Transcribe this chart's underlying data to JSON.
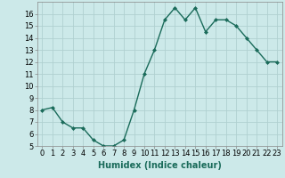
{
  "x": [
    0,
    1,
    2,
    3,
    4,
    5,
    6,
    7,
    8,
    9,
    10,
    11,
    12,
    13,
    14,
    15,
    16,
    17,
    18,
    19,
    20,
    21,
    22,
    23
  ],
  "y": [
    8.0,
    8.2,
    7.0,
    6.5,
    6.5,
    5.5,
    5.0,
    5.0,
    5.5,
    8.0,
    11.0,
    13.0,
    15.5,
    16.5,
    15.5,
    16.5,
    14.5,
    15.5,
    15.5,
    15.0,
    14.0,
    13.0,
    12.0,
    12.0
  ],
  "line_color": "#1a6b5a",
  "marker": "D",
  "marker_size": 2.0,
  "bg_color": "#cce9e9",
  "grid_color": "#b0d0d0",
  "xlabel": "Humidex (Indice chaleur)",
  "xlabel_fontsize": 7,
  "ylim": [
    5,
    17
  ],
  "xlim": [
    -0.5,
    23.5
  ],
  "yticks": [
    5,
    6,
    7,
    8,
    9,
    10,
    11,
    12,
    13,
    14,
    15,
    16
  ],
  "xticks": [
    0,
    1,
    2,
    3,
    4,
    5,
    6,
    7,
    8,
    9,
    10,
    11,
    12,
    13,
    14,
    15,
    16,
    17,
    18,
    19,
    20,
    21,
    22,
    23
  ],
  "tick_fontsize": 6,
  "line_width": 1.0
}
